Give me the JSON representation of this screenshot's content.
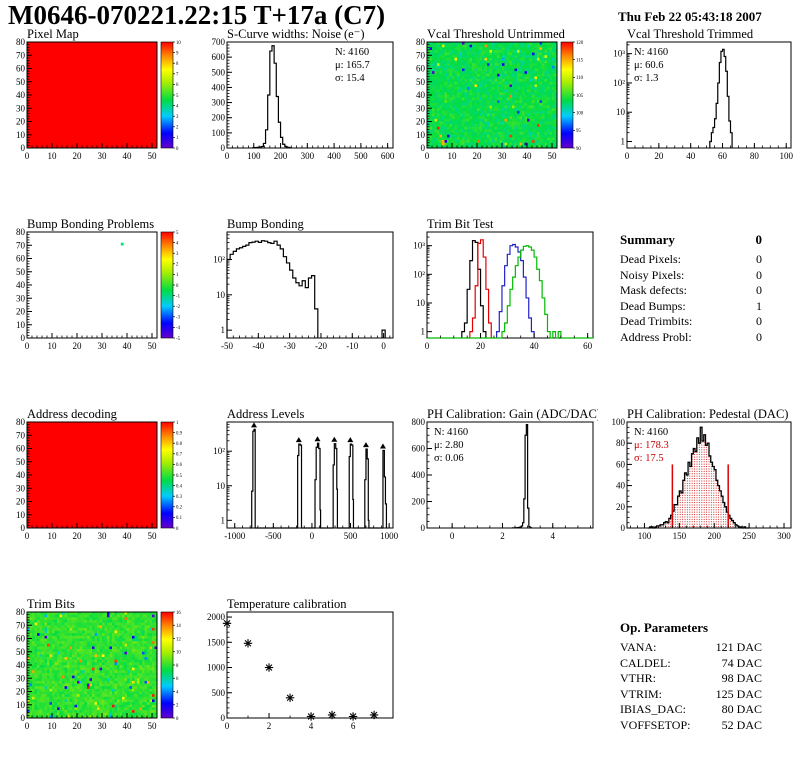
{
  "header": {
    "title": "M0646-070221.22:15 T+17a (C7)",
    "date": "Thu Feb 22 05:43:18 2007"
  },
  "summary": {
    "title": "Summary",
    "total": "0",
    "rows": [
      {
        "label": "Dead Pixels:",
        "value": "0"
      },
      {
        "label": "Noisy Pixels:",
        "value": "0"
      },
      {
        "label": "Mask defects:",
        "value": "0"
      },
      {
        "label": "Dead Bumps:",
        "value": "1"
      },
      {
        "label": "Dead Trimbits:",
        "value": "0"
      },
      {
        "label": "Address Probl:",
        "value": "0"
      }
    ]
  },
  "op_parameters": {
    "title": "Op. Parameters",
    "rows": [
      {
        "label": "VANA:",
        "value": "121 DAC"
      },
      {
        "label": "CALDEL:",
        "value": "74 DAC"
      },
      {
        "label": "VTHR:",
        "value": "98 DAC"
      },
      {
        "label": "VTRIM:",
        "value": "125 DAC"
      },
      {
        "label": "IBIAS_DAC:",
        "value": "80 DAC"
      },
      {
        "label": "VOFFSETOP:",
        "value": "52 DAC"
      }
    ]
  },
  "palette_hint": {
    "rainbow": [
      "#6600cc",
      "#0000ff",
      "#00ccff",
      "#00dd44",
      "#aaee00",
      "#ffff00",
      "#ff8800",
      "#ff0000"
    ]
  },
  "chart_data": {
    "pixel_map": {
      "kind": "heatmap",
      "type": "heatmap",
      "title": "Pixel Map",
      "fill": "solid",
      "color": "#ff0000",
      "x": {
        "min": 0,
        "max": 52,
        "ticks": [
          0,
          10,
          20,
          30,
          40,
          50
        ],
        "minor": 2
      },
      "y": {
        "min": 0,
        "max": 80,
        "ticks": [
          0,
          10,
          20,
          30,
          40,
          50,
          60,
          70,
          80
        ],
        "minor": 2
      },
      "colorbar": {
        "labels": [
          "10",
          "9",
          "8",
          "7",
          "6",
          "5",
          "4",
          "3",
          "2",
          "1",
          "0"
        ]
      }
    },
    "scurve_noise": {
      "kind": "hist",
      "type": "line",
      "title": "S-Curve widths: Noise (e⁻)",
      "x": {
        "min": 0,
        "max": 620,
        "ticks": [
          0,
          100,
          200,
          300,
          400,
          500,
          600
        ],
        "minor": 20
      },
      "y": {
        "min": 0,
        "max": 700,
        "ticks": [
          0,
          100,
          200,
          300,
          400,
          500,
          600,
          700
        ],
        "minor": 20
      },
      "series": [
        {
          "color": "#000000",
          "start": 96,
          "width": 8,
          "values": [
            2,
            3,
            4,
            6,
            10,
            30,
            120,
            350,
            640,
            675,
            560,
            340,
            170,
            70,
            25,
            10,
            4,
            2
          ]
        }
      ],
      "stats": {
        "pos": "tr",
        "lines": [
          {
            "text": "N: 4160",
            "color": "#000000"
          },
          {
            "text": "μ: 165.7",
            "color": "#000000"
          },
          {
            "text": "σ: 15.4",
            "color": "#000000"
          }
        ]
      }
    },
    "vcal_untrimmed": {
      "kind": "heatmap",
      "type": "heatmap",
      "title": "Vcal Threshold Untrimmed",
      "fill": "noise",
      "noise": {
        "seed": 12,
        "center": 0.45,
        "spread": 0.085,
        "outlier": 0.04
      },
      "x": {
        "min": 0,
        "max": 52,
        "ticks": [
          0,
          10,
          20,
          30,
          40,
          50
        ],
        "minor": 2
      },
      "y": {
        "min": 0,
        "max": 80,
        "ticks": [
          0,
          10,
          20,
          30,
          40,
          50,
          60,
          70,
          80
        ],
        "minor": 2
      },
      "colorbar": {
        "labels": [
          "120",
          "115",
          "110",
          "105",
          "100",
          "95",
          "90"
        ]
      }
    },
    "vcal_trimmed": {
      "kind": "hist",
      "type": "line",
      "title": "Vcal Threshold Trimmed",
      "logy": true,
      "x": {
        "min": 0,
        "max": 103,
        "ticks": [
          0,
          20,
          40,
          60,
          80,
          100
        ],
        "minor": 5
      },
      "y": {
        "logmin": 0.6,
        "logmax": 2500,
        "labels": [
          "1",
          "10",
          "10²",
          "10³"
        ]
      },
      "series": [
        {
          "color": "#000000",
          "start": 52,
          "width": 1,
          "values": [
            1,
            2,
            3,
            6,
            20,
            100,
            500,
            1200,
            1400,
            800,
            250,
            35,
            5,
            2
          ]
        }
      ],
      "stats": {
        "pos": "tl",
        "lines": [
          {
            "text": "N: 4160",
            "color": "#000000"
          },
          {
            "text": "μ: 60.6",
            "color": "#000000"
          },
          {
            "text": "σ:  1.3",
            "color": "#000000"
          }
        ]
      }
    },
    "bump_problems": {
      "kind": "heatmap",
      "type": "heatmap",
      "title": "Bump Bonding Problems",
      "fill": "points",
      "points": [
        {
          "x": 38,
          "y": 71,
          "color": "#00e673"
        }
      ],
      "x": {
        "min": 0,
        "max": 52,
        "ticks": [
          0,
          10,
          20,
          30,
          40,
          50
        ],
        "minor": 2
      },
      "y": {
        "min": 0,
        "max": 80,
        "ticks": [
          0,
          10,
          20,
          30,
          40,
          50,
          60,
          70,
          80
        ],
        "minor": 2
      },
      "colorbar": {
        "labels": [
          "5",
          "4",
          "3",
          "2",
          "1",
          "0",
          "-1",
          "-2",
          "-3",
          "-4",
          "-5"
        ]
      }
    },
    "bump_bonding": {
      "kind": "hist",
      "type": "line",
      "title": "Bump Bonding",
      "logy": true,
      "x": {
        "min": -50,
        "max": 3,
        "ticks": [
          -50,
          -40,
          -30,
          -20,
          -10,
          0
        ],
        "minor": 2
      },
      "y": {
        "logmin": 0.6,
        "logmax": 600,
        "labels": [
          "1",
          "10",
          "10²"
        ]
      },
      "series": [
        {
          "color": "#000000",
          "start": -50,
          "width": 1,
          "values": [
            100,
            140,
            170,
            200,
            215,
            235,
            255,
            300,
            310,
            330,
            305,
            340,
            330,
            300,
            285,
            330,
            255,
            200,
            120,
            80,
            50,
            30,
            22,
            18,
            25,
            16,
            30,
            35,
            4
          ]
        },
        {
          "color": "#000000",
          "start": -0.5,
          "width": 1,
          "values": [
            1
          ]
        }
      ]
    },
    "trim_bit_test": {
      "kind": "hist",
      "type": "line",
      "title": "Trim Bit Test",
      "logy": true,
      "x": {
        "min": 0,
        "max": 62,
        "ticks": [
          0,
          20,
          40,
          60
        ],
        "minor": 5
      },
      "y": {
        "logmin": 0.6,
        "logmax": 3000,
        "labels": [
          "1",
          "10",
          "10²",
          "10³"
        ]
      },
      "series": [
        {
          "color": "#000000",
          "start": 13,
          "width": 1,
          "values": [
            1,
            2,
            30,
            300,
            1500,
            1300,
            150,
            8,
            1
          ]
        },
        {
          "color": "#e60000",
          "start": 16,
          "width": 1,
          "values": [
            1,
            3,
            40,
            1200,
            1600,
            400,
            30,
            2
          ]
        },
        {
          "color": "#2222cc",
          "start": 26,
          "width": 1,
          "values": [
            1,
            5,
            40,
            200,
            500,
            1000,
            1100,
            900,
            600,
            300,
            80,
            15,
            3,
            1
          ]
        },
        {
          "color": "#00bb00",
          "start": 0,
          "width": 1,
          "values": [
            0,
            0,
            0,
            0,
            0,
            0,
            0,
            0,
            0,
            0,
            0,
            0,
            0,
            0,
            0,
            0,
            0,
            0,
            0,
            0,
            0,
            0,
            0,
            0,
            0,
            0,
            0,
            0,
            1,
            2,
            8,
            30,
            80,
            200,
            400,
            700,
            950,
            1000,
            900,
            700,
            400,
            150,
            60,
            15,
            4,
            1,
            0,
            1,
            0,
            1,
            0,
            0,
            0,
            0,
            0,
            0,
            0,
            0,
            0,
            0,
            0,
            0
          ]
        }
      ]
    },
    "address_decoding": {
      "kind": "heatmap",
      "type": "heatmap",
      "title": "Address decoding",
      "fill": "solid",
      "color": "#ff0000",
      "x": {
        "min": 0,
        "max": 52,
        "ticks": [
          0,
          10,
          20,
          30,
          40,
          50
        ],
        "minor": 2
      },
      "y": {
        "min": 0,
        "max": 80,
        "ticks": [
          0,
          10,
          20,
          30,
          40,
          50,
          60,
          70,
          80
        ],
        "minor": 2
      },
      "colorbar": {
        "labels": [
          "1",
          "0.9",
          "0.8",
          "0.7",
          "0.6",
          "0.5",
          "0.4",
          "0.3",
          "0.2",
          "0.1",
          "0"
        ]
      }
    },
    "address_levels": {
      "kind": "hist",
      "type": "line",
      "title": "Address Levels",
      "logy": true,
      "x": {
        "min": -1100,
        "max": 1050,
        "ticks": [
          -1000,
          -500,
          0,
          500,
          1000
        ],
        "minor": 100
      },
      "y": {
        "logmin": 0.6,
        "logmax": 700,
        "labels": [
          "1",
          "10",
          "10²"
        ]
      },
      "series": [
        {
          "color": "#000000",
          "pairs": [
            [
              -800,
              0
            ],
            [
              -780,
              7
            ],
            [
              -765,
              380
            ],
            [
              -750,
              430
            ],
            [
              -735,
              0
            ],
            [
              -200,
              0
            ],
            [
              -185,
              75
            ],
            [
              -170,
              160
            ],
            [
              -152,
              150
            ],
            [
              -135,
              0
            ],
            [
              25,
              0
            ],
            [
              40,
              15
            ],
            [
              55,
              130
            ],
            [
              72,
              170
            ],
            [
              88,
              120
            ],
            [
              105,
              2
            ],
            [
              112,
              0
            ],
            [
              262,
              0
            ],
            [
              275,
              40
            ],
            [
              290,
              165
            ],
            [
              308,
              120
            ],
            [
              322,
              8
            ],
            [
              330,
              0
            ],
            [
              470,
              0
            ],
            [
              483,
              70
            ],
            [
              497,
              160
            ],
            [
              515,
              150
            ],
            [
              530,
              4
            ],
            [
              538,
              0
            ],
            [
              672,
              0
            ],
            [
              685,
              15
            ],
            [
              700,
              115
            ],
            [
              716,
              60
            ],
            [
              730,
              1
            ],
            [
              738,
              0
            ],
            [
              905,
              0
            ],
            [
              920,
              105
            ],
            [
              938,
              18
            ],
            [
              952,
              3
            ],
            [
              965,
              0
            ]
          ]
        }
      ],
      "markers": [
        [
          -750,
          430
        ],
        [
          -170,
          160
        ],
        [
          72,
          170
        ],
        [
          290,
          165
        ],
        [
          497,
          160
        ],
        [
          700,
          115
        ],
        [
          920,
          105
        ]
      ]
    },
    "ph_gain": {
      "kind": "hist",
      "type": "line",
      "title": "PH Calibration: Gain (ADC/DAC)",
      "x": {
        "min": -1,
        "max": 5.6,
        "ticks": [
          0,
          2,
          4
        ],
        "minor": 0.5
      },
      "y": {
        "min": 0,
        "max": 800,
        "ticks": [
          0,
          200,
          400,
          600,
          800
        ],
        "minor": 50
      },
      "series": [
        {
          "color": "#000000",
          "start": 2.4,
          "width": 0.05,
          "values": [
            1,
            1,
            2,
            2,
            3,
            5,
            8,
            15,
            40,
            220,
            700,
            780,
            150,
            10,
            2
          ]
        }
      ],
      "stats": {
        "pos": "tl",
        "lines": [
          {
            "text": "N: 4160",
            "color": "#000000"
          },
          {
            "text": "μ: 2.80",
            "color": "#000000"
          },
          {
            "text": "σ: 0.06",
            "color": "#000000"
          }
        ]
      }
    },
    "ph_pedestal": {
      "kind": "hist",
      "type": "line",
      "title": "PH Calibration: Pedestal (DAC)",
      "x": {
        "min": 75,
        "max": 310,
        "ticks": [
          100,
          150,
          200,
          250,
          300
        ],
        "minor": 10
      },
      "y": {
        "min": 0,
        "max": 100,
        "ticks": [
          0,
          20,
          40,
          60,
          80,
          100
        ],
        "minor": 5
      },
      "series": [
        {
          "color": "#000000",
          "fill": "dots",
          "fillColor": "#cc0000",
          "start": 105,
          "width": 2.5,
          "values": [
            0,
            1,
            1,
            0,
            1,
            2,
            2,
            3,
            3,
            5,
            6,
            5,
            9,
            12,
            16,
            22,
            22,
            30,
            35,
            33,
            45,
            52,
            50,
            62,
            58,
            70,
            75,
            72,
            85,
            80,
            95,
            82,
            88,
            78,
            80,
            68,
            62,
            58,
            55,
            45,
            40,
            35,
            30,
            24,
            20,
            15,
            12,
            9,
            7,
            5,
            3,
            2,
            1,
            1,
            0,
            1,
            0,
            0
          ]
        }
      ],
      "vlines": [
        {
          "x": 140,
          "h": 60,
          "color": "#dd0000"
        },
        {
          "x": 220,
          "h": 60,
          "color": "#dd0000"
        }
      ],
      "stats": {
        "pos": "tl",
        "lines": [
          {
            "text": "N: 4160",
            "color": "#000000"
          },
          {
            "text": "μ: 178.3",
            "color": "#cc0000"
          },
          {
            "text": "σ: 17.5",
            "color": "#cc0000"
          }
        ]
      }
    },
    "trim_bits": {
      "kind": "heatmap",
      "type": "heatmap",
      "title": "Trim Bits",
      "fill": "noise",
      "noise": {
        "seed": 5,
        "center": 0.5,
        "spread": 0.08,
        "outlier": 0.05
      },
      "x": {
        "min": 0,
        "max": 52,
        "ticks": [
          0,
          10,
          20,
          30,
          40,
          50
        ],
        "minor": 2
      },
      "y": {
        "min": 0,
        "max": 80,
        "ticks": [
          0,
          10,
          20,
          30,
          40,
          50,
          60,
          70,
          80
        ],
        "minor": 2
      },
      "colorbar": {
        "labels": [
          "16",
          "14",
          "12",
          "10",
          "8",
          "6",
          "4",
          "2",
          "0"
        ]
      }
    },
    "temperature": {
      "kind": "scatter",
      "type": "scatter",
      "title": "Temperature calibration",
      "x": {
        "min": 0,
        "max": 7.9,
        "ticks": [
          0,
          2,
          4,
          6
        ],
        "minor": 1
      },
      "y": {
        "min": 0,
        "max": 2100,
        "ticks": [
          0,
          500,
          1000,
          1500,
          2000
        ],
        "minor": 100
      },
      "points": [
        [
          0,
          1875
        ],
        [
          1,
          1480
        ],
        [
          2,
          1000
        ],
        [
          3,
          400
        ],
        [
          4,
          30
        ],
        [
          5,
          60
        ],
        [
          6,
          30
        ],
        [
          7,
          60
        ]
      ]
    }
  }
}
